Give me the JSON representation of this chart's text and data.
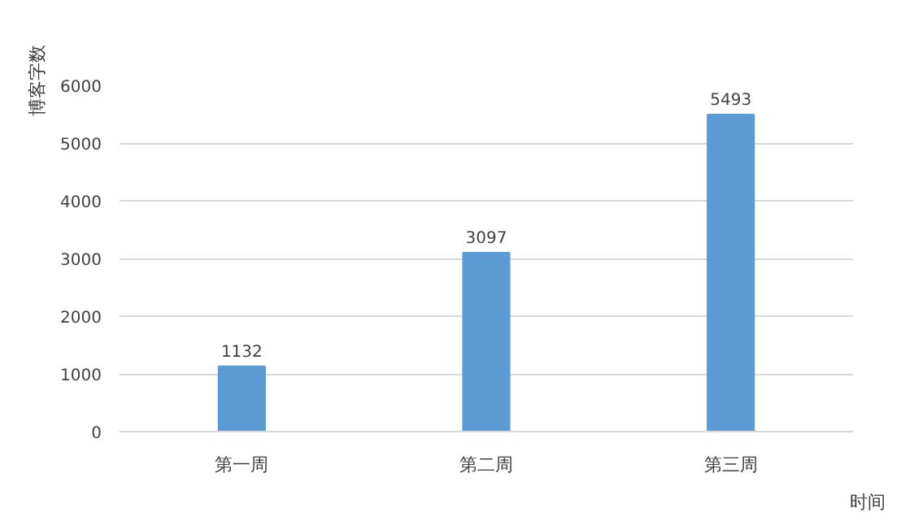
{
  "chart_data": {
    "type": "bar",
    "xlabel": "时间",
    "ylabel": "博客字数",
    "categories": [
      "第一周",
      "第二周",
      "第三周"
    ],
    "values": [
      1132,
      3097,
      5493
    ],
    "color": "#5b9bd5",
    "ylim": [
      0,
      6000
    ],
    "yticks": [
      0,
      1000,
      2000,
      3000,
      4000,
      5000,
      6000
    ],
    "grid": "y",
    "data_labels": true
  }
}
